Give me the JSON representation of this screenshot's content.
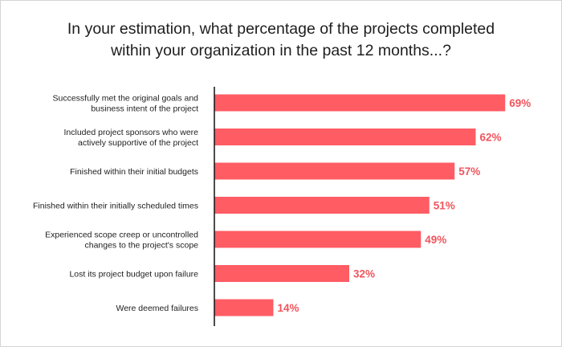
{
  "title_lines": [
    "In your estimation, what percentage of the projects completed",
    "within your organization in the past 12 months...?"
  ],
  "colors": {
    "bar": "#FF5C64",
    "value_label": "#F0555D",
    "axis": "#111111"
  },
  "chart_data": {
    "type": "bar",
    "orientation": "horizontal",
    "title": "In your estimation, what percentage of the projects completed within your organization in the past 12 months...?",
    "categories": [
      [
        "Successfully met the original goals and",
        "business intent of the project"
      ],
      [
        "Included project sponsors who were",
        "actively supportive of the project"
      ],
      [
        "Finished within their initial budgets"
      ],
      [
        "Finished within their initially scheduled times"
      ],
      [
        "Experienced scope creep or uncontrolled",
        "changes to the project's scope"
      ],
      [
        "Lost its project budget upon failure"
      ],
      [
        "Were deemed failures"
      ]
    ],
    "values": [
      69,
      62,
      57,
      51,
      49,
      32,
      14
    ],
    "value_labels": [
      "69%",
      "62%",
      "57%",
      "51%",
      "49%",
      "32%",
      "14%"
    ],
    "xlim": [
      0,
      100
    ],
    "grid": false,
    "legend": "none"
  }
}
